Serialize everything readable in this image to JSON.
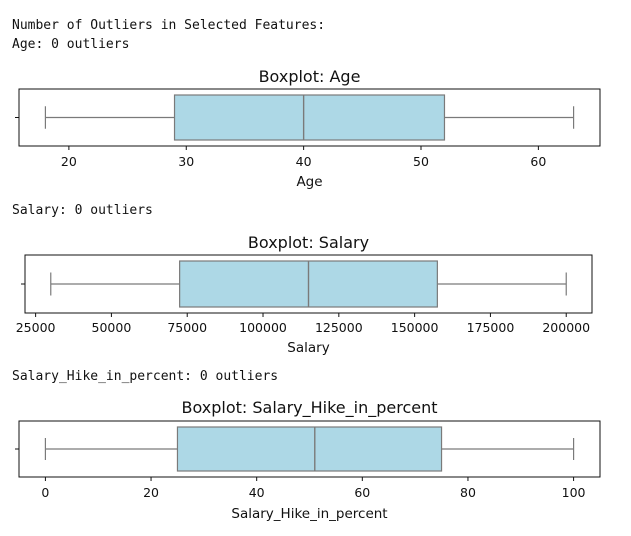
{
  "output": {
    "heading": "Number of Outliers in Selected Features:",
    "counts": {
      "age": "Age: 0 outliers",
      "salary": "Salary: 0 outliers",
      "hike": "Salary_Hike_in_percent: 0 outliers"
    }
  },
  "colors": {
    "box_fill": "#add8e6",
    "box_edge": "#7a7a7a",
    "axis": "#111111"
  },
  "chart_data": [
    {
      "type": "box",
      "title": "Boxplot: Age",
      "xlabel": "Age",
      "xlim": [
        15.75,
        65.25
      ],
      "ticks": [
        20,
        30,
        40,
        50,
        60
      ],
      "tick_labels": [
        "20",
        "30",
        "40",
        "50",
        "60"
      ],
      "whisker_low": 18,
      "q1": 29,
      "median": 40,
      "q3": 52,
      "whisker_high": 63,
      "outliers": []
    },
    {
      "type": "box",
      "title": "Boxplot: Salary",
      "xlabel": "Salary",
      "xlim": [
        21500,
        208500
      ],
      "ticks": [
        25000,
        50000,
        75000,
        100000,
        125000,
        150000,
        175000,
        200000
      ],
      "tick_labels": [
        "25000",
        "50000",
        "75000",
        "100000",
        "125000",
        "150000",
        "175000",
        "200000"
      ],
      "whisker_low": 30000,
      "q1": 72500,
      "median": 115000,
      "q3": 157500,
      "whisker_high": 200000,
      "outliers": []
    },
    {
      "type": "box",
      "title": "Boxplot: Salary_Hike_in_percent",
      "xlabel": "Salary_Hike_in_percent",
      "xlim": [
        -5,
        105
      ],
      "ticks": [
        0,
        20,
        40,
        60,
        80,
        100
      ],
      "tick_labels": [
        "0",
        "20",
        "40",
        "60",
        "80",
        "100"
      ],
      "whisker_low": 0,
      "q1": 25,
      "median": 51,
      "q3": 75,
      "whisker_high": 100,
      "outliers": []
    }
  ]
}
